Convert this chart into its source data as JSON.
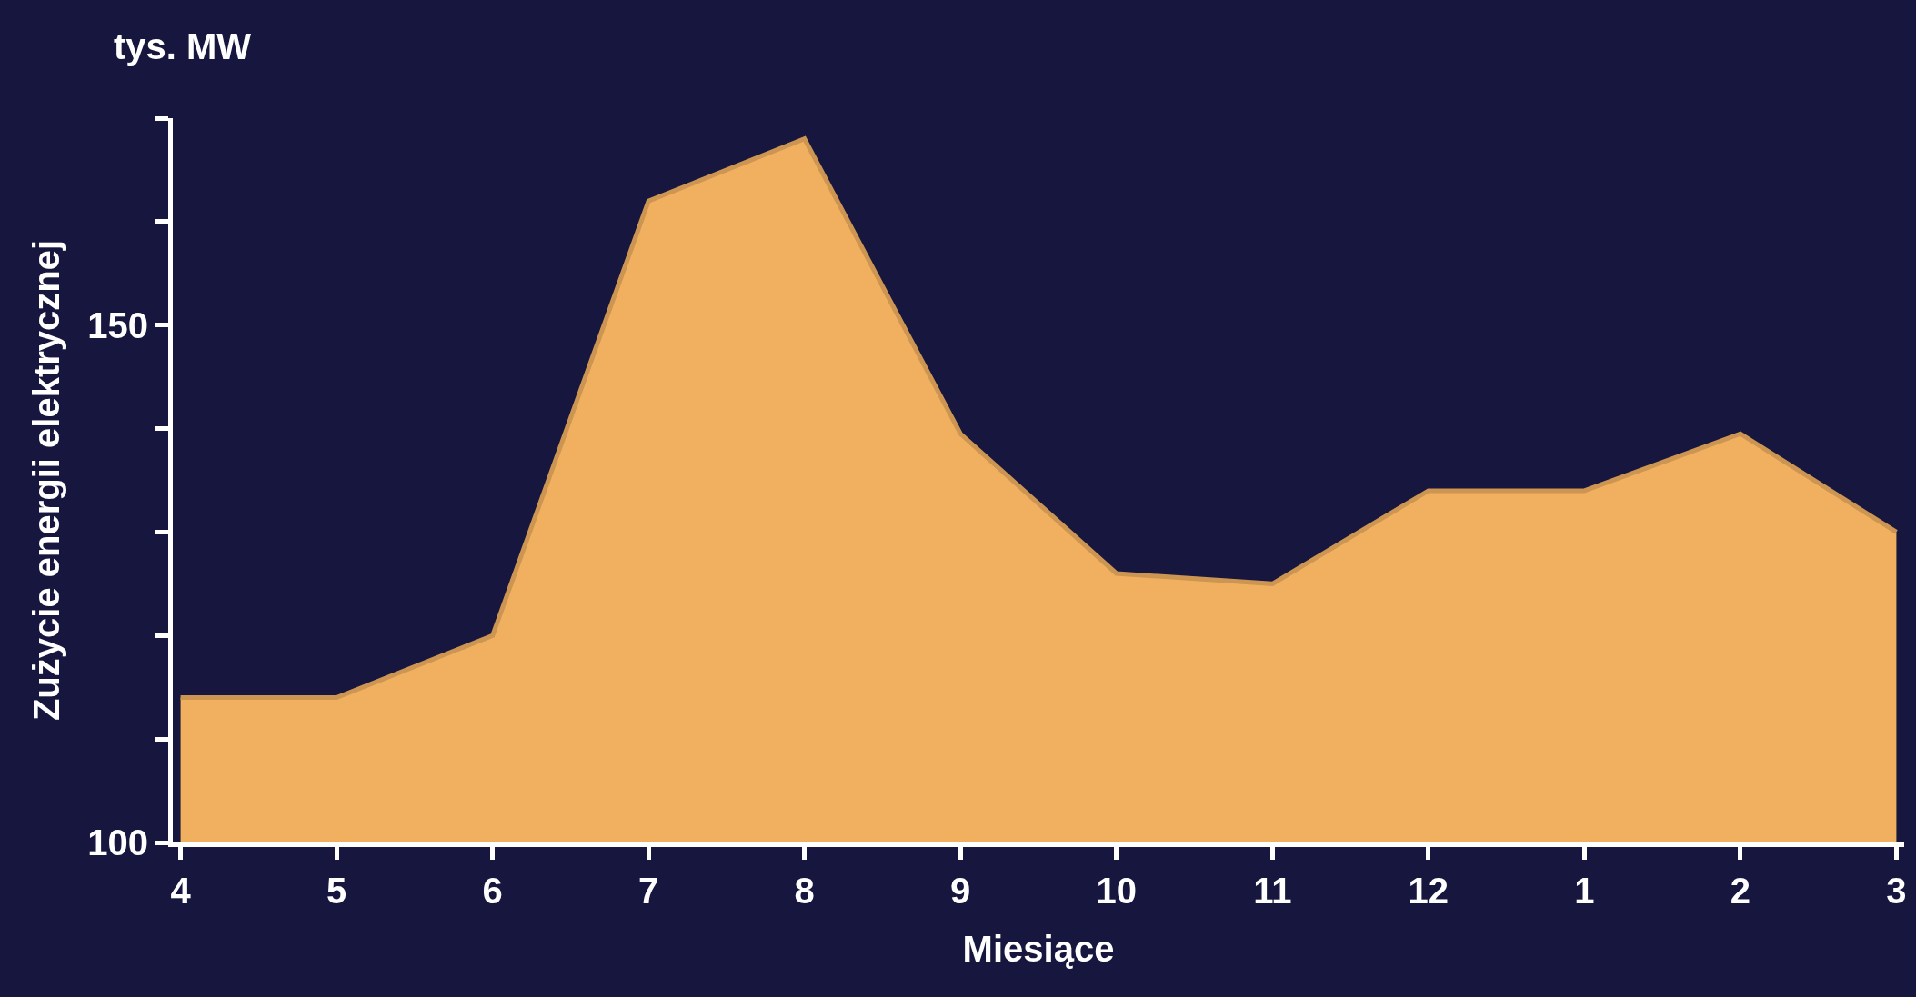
{
  "chart_data": {
    "type": "area",
    "xlabel": "Miesiące",
    "ylabel": "Zużycie energii elektrycznej",
    "annotations": [
      "tys. MW"
    ],
    "categories": [
      "4",
      "5",
      "6",
      "7",
      "8",
      "9",
      "10",
      "11",
      "12",
      "1",
      "2",
      "3"
    ],
    "series": [
      {
        "color": "#f0b060",
        "values": [
          114,
          114,
          120,
          162,
          168,
          139.5,
          126,
          125,
          134,
          134,
          139.5,
          130
        ]
      }
    ],
    "ylim": [
      100,
      170
    ],
    "yticks": [
      100,
      {
        "value": 110,
        "label": null
      },
      {
        "value": 120,
        "label": null
      },
      {
        "value": 130,
        "label": null
      },
      {
        "value": 140,
        "label": null
      },
      150,
      {
        "value": 160,
        "label": null
      },
      {
        "value": 170,
        "label": null
      }
    ],
    "grid": false
  }
}
